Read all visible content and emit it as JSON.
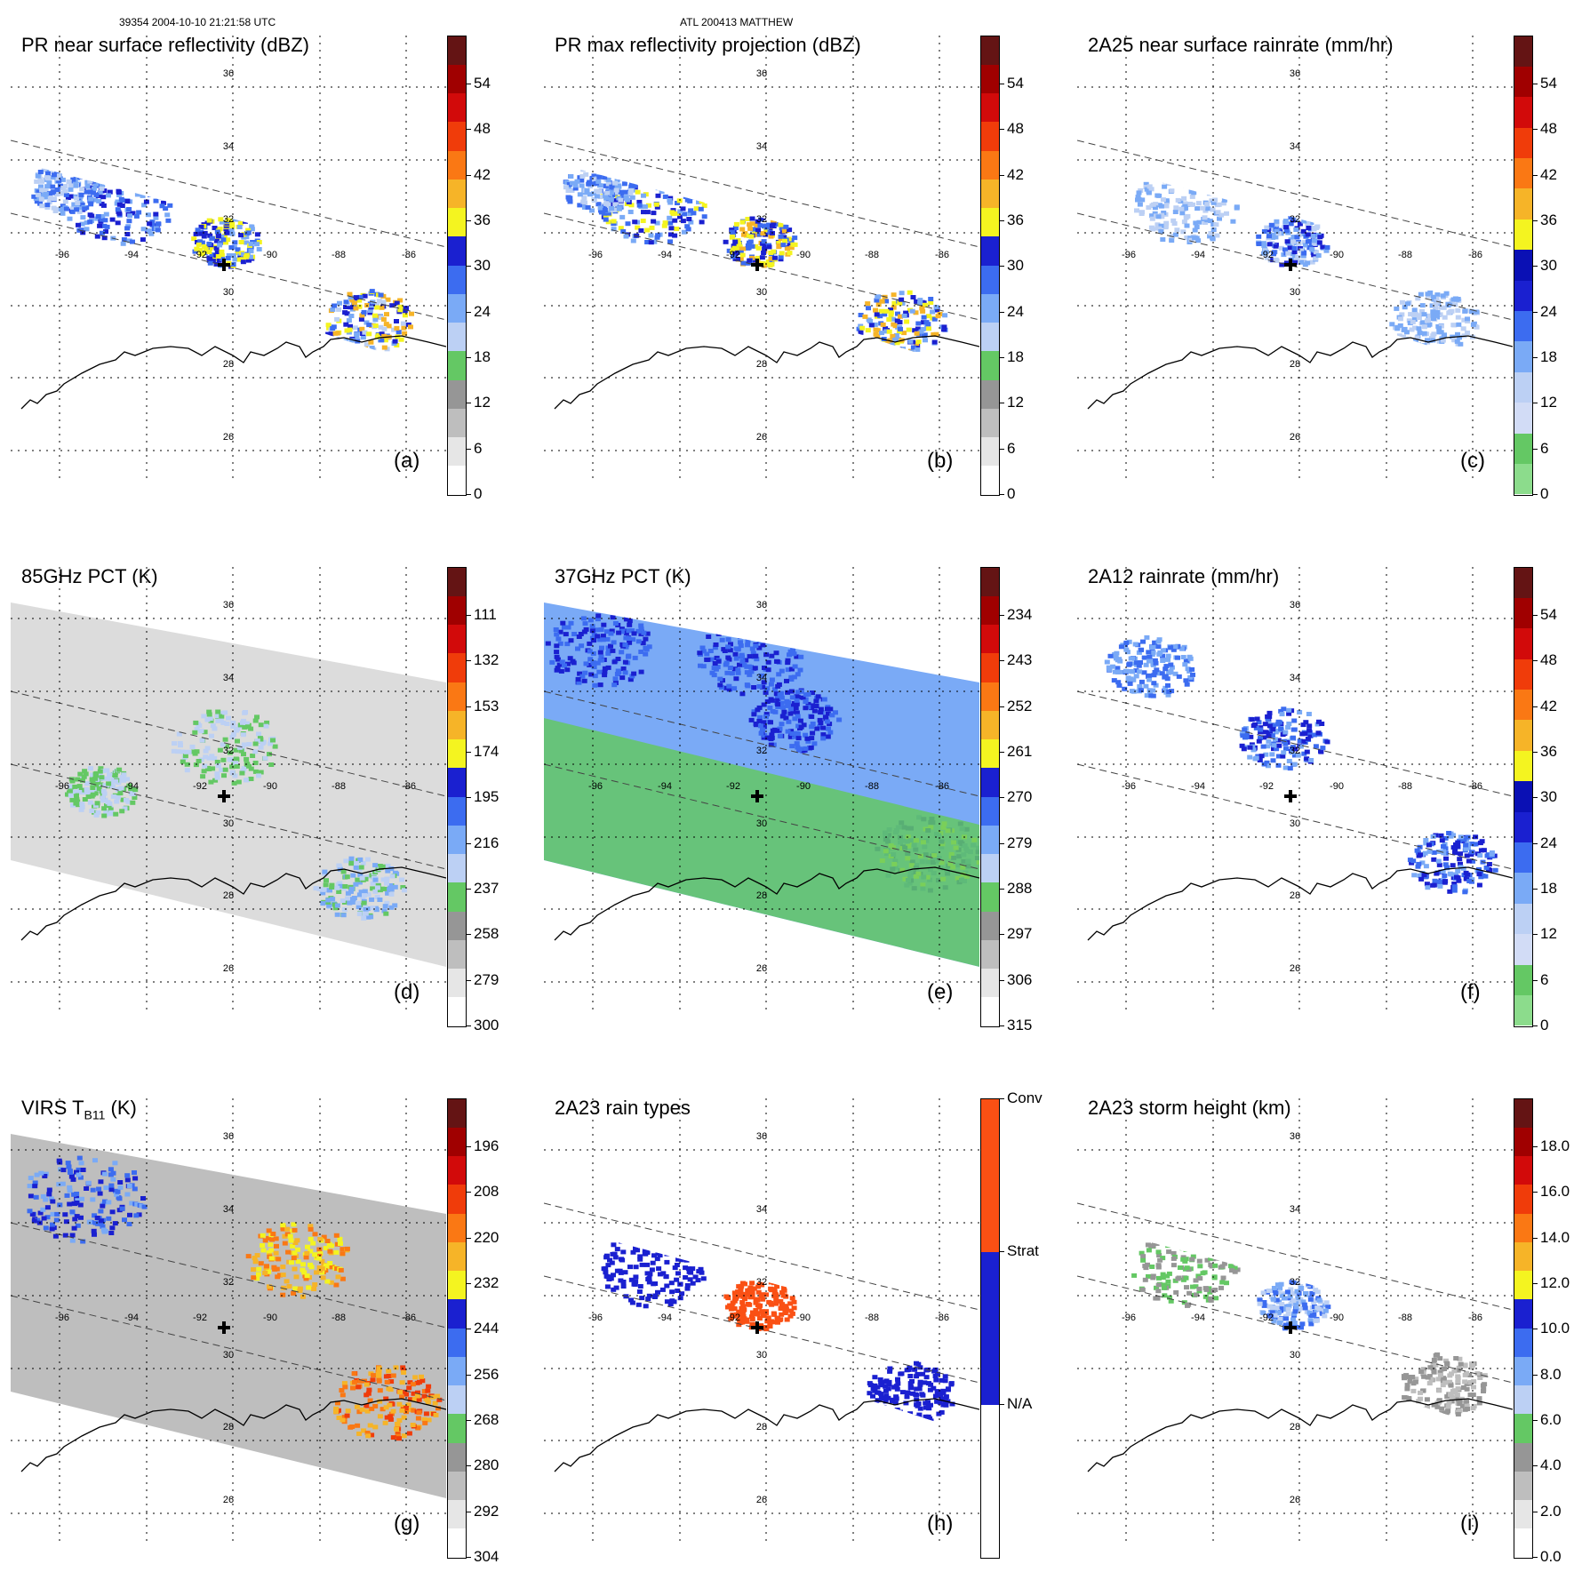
{
  "header": {
    "orbit_time": "39354 2004-10-10 21:21:58 UTC",
    "storm": "ATL 200413 MATTHEW"
  },
  "map": {
    "lon_ticks": [
      "-96",
      "-94",
      "-92",
      "-90",
      "-88",
      "-86"
    ],
    "lat_ticks": [
      "36",
      "34",
      "32",
      "30",
      "28",
      "26"
    ]
  },
  "panels": [
    {
      "id": "a",
      "label": "(a)",
      "title": "PR near surface reflectivity (dBZ)",
      "colorbar_ticks": [
        "54",
        "48",
        "42",
        "36",
        "30",
        "24",
        "18",
        "12",
        "6",
        "0"
      ],
      "colors": [
        "#ffffff",
        "#e6e6e6",
        "#bebebe",
        "#969696",
        "#64c864",
        "#bcd0f4",
        "#7aaaf6",
        "#3c6cf0",
        "#1a20d0",
        "#f4f420",
        "#f6b428",
        "#fa7814",
        "#f03c0a",
        "#d20a0a",
        "#a00000",
        "#641414"
      ]
    },
    {
      "id": "b",
      "label": "(b)",
      "title": "PR max reflectivity projection (dBZ)",
      "colorbar_ticks": [
        "54",
        "48",
        "42",
        "36",
        "30",
        "24",
        "18",
        "12",
        "6",
        "0"
      ],
      "colors": [
        "#ffffff",
        "#e6e6e6",
        "#bebebe",
        "#969696",
        "#64c864",
        "#bcd0f4",
        "#7aaaf6",
        "#3c6cf0",
        "#1a20d0",
        "#f4f420",
        "#f6b428",
        "#fa7814",
        "#f03c0a",
        "#d20a0a",
        "#a00000",
        "#641414"
      ]
    },
    {
      "id": "c",
      "label": "(c)",
      "title": "2A25 near surface rainrate (mm/hr)",
      "colorbar_ticks": [
        "54",
        "48",
        "42",
        "36",
        "30",
        "24",
        "18",
        "12",
        "6",
        "0"
      ],
      "colors": [
        "#8cdc8c",
        "#64c864",
        "#d2dcf6",
        "#bcd0f4",
        "#7aaaf6",
        "#3c6cf0",
        "#1a20d0",
        "#0a10b4",
        "#f4f420",
        "#f6b428",
        "#fa7814",
        "#f03c0a",
        "#d20a0a",
        "#a00000",
        "#641414"
      ]
    },
    {
      "id": "d",
      "label": "(d)",
      "title": "85GHz PCT (K)",
      "colorbar_ticks": [
        "111",
        "132",
        "153",
        "174",
        "195",
        "216",
        "237",
        "258",
        "279",
        "300"
      ],
      "colors": [
        "#ffffff",
        "#e6e6e6",
        "#bebebe",
        "#969696",
        "#64c864",
        "#bcd0f4",
        "#7aaaf6",
        "#3c6cf0",
        "#1a20d0",
        "#f4f420",
        "#f6b428",
        "#fa7814",
        "#f03c0a",
        "#d20a0a",
        "#a00000",
        "#641414"
      ]
    },
    {
      "id": "e",
      "label": "(e)",
      "title": "37GHz PCT (K)",
      "colorbar_ticks": [
        "234",
        "243",
        "252",
        "261",
        "270",
        "279",
        "288",
        "297",
        "306",
        "315"
      ],
      "colors": [
        "#ffffff",
        "#e6e6e6",
        "#bebebe",
        "#969696",
        "#64c864",
        "#bcd0f4",
        "#7aaaf6",
        "#3c6cf0",
        "#1a20d0",
        "#f4f420",
        "#f6b428",
        "#fa7814",
        "#f03c0a",
        "#d20a0a",
        "#a00000",
        "#641414"
      ]
    },
    {
      "id": "f",
      "label": "(f)",
      "title": "2A12 rainrate (mm/hr)",
      "colorbar_ticks": [
        "54",
        "48",
        "42",
        "36",
        "30",
        "24",
        "18",
        "12",
        "6",
        "0"
      ],
      "colors": [
        "#8cdc8c",
        "#64c864",
        "#d2dcf6",
        "#bcd0f4",
        "#7aaaf6",
        "#3c6cf0",
        "#1a20d0",
        "#0a10b4",
        "#f4f420",
        "#f6b428",
        "#fa7814",
        "#f03c0a",
        "#d20a0a",
        "#a00000",
        "#641414"
      ]
    },
    {
      "id": "g",
      "label": "(g)",
      "title": "VIRS T",
      "title_sub": "B11",
      "title_suffix": " (K)",
      "colorbar_ticks": [
        "196",
        "208",
        "220",
        "232",
        "244",
        "256",
        "268",
        "280",
        "292",
        "304"
      ],
      "colors": [
        "#ffffff",
        "#e6e6e6",
        "#bebebe",
        "#969696",
        "#64c864",
        "#bcd0f4",
        "#7aaaf6",
        "#3c6cf0",
        "#1a20d0",
        "#f4f420",
        "#f6b428",
        "#fa7814",
        "#f03c0a",
        "#d20a0a",
        "#a00000",
        "#641414"
      ]
    },
    {
      "id": "h",
      "label": "(h)",
      "title": "2A23 rain types",
      "colorbar_ticks": [
        "Conv",
        "Strat",
        "N/A"
      ],
      "colors": [
        "#ffffff",
        "#1a20d0",
        "#fa5014"
      ]
    },
    {
      "id": "i",
      "label": "(i)",
      "title": "2A23 storm height (km)",
      "colorbar_ticks": [
        "18.0",
        "16.0",
        "14.0",
        "12.0",
        "10.0",
        "8.0",
        "6.0",
        "4.0",
        "2.0",
        "0.0"
      ],
      "colors": [
        "#ffffff",
        "#e6e6e6",
        "#bebebe",
        "#969696",
        "#64c864",
        "#bcd0f4",
        "#7aaaf6",
        "#3c6cf0",
        "#1a20d0",
        "#f4f420",
        "#f6b428",
        "#fa7814",
        "#f03c0a",
        "#d20a0a",
        "#a00000",
        "#641414"
      ]
    }
  ]
}
